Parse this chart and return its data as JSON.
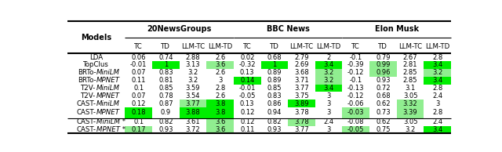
{
  "col_groups": [
    {
      "label": "20NewsGroups",
      "start": 1,
      "end": 5
    },
    {
      "label": "BBC News",
      "start": 5,
      "end": 9
    },
    {
      "label": "Elon Musk",
      "start": 9,
      "end": 13
    }
  ],
  "sub_cols": [
    "TC",
    "TD",
    "LLM-TC",
    "LLM-TD",
    "TC",
    "TD",
    "LLM-TC",
    "LLM-TD",
    "TC",
    "TD",
    "LLM-TC",
    "LLM-TD"
  ],
  "models": [
    "LDA",
    "TopClus",
    "BRTo-MiniLM",
    "BRTo-MPNET",
    "T2V-MiniLM",
    "T2V-MPNET",
    "CAST-MiniLM",
    "CAST-MPNET",
    "CAST-MiniLM *",
    "CAST-MPNET *"
  ],
  "italic_parts": {
    "BRTo-MiniLM": [
      "BRTo-",
      "MiniLM",
      ""
    ],
    "BRTo-MPNET": [
      "BRTo-",
      "MPNET",
      ""
    ],
    "T2V-MiniLM": [
      "T2V-",
      "MiniLM",
      ""
    ],
    "T2V-MPNET": [
      "T2V-",
      "MPNET",
      ""
    ],
    "CAST-MiniLM": [
      "CAST-",
      "MiniLM",
      ""
    ],
    "CAST-MPNET": [
      "CAST-",
      "MPNET",
      ""
    ],
    "CAST-MiniLM *": [
      "CAST-",
      "MiniLM",
      " *"
    ],
    "CAST-MPNET *": [
      "CAST-",
      "MPNET",
      " *"
    ]
  },
  "data": [
    [
      0.06,
      0.74,
      2.88,
      2.6,
      0.02,
      0.68,
      2.79,
      2,
      -0.1,
      0.79,
      2.67,
      2.8
    ],
    [
      -0.01,
      1,
      3.13,
      3.6,
      -0.32,
      1,
      2.69,
      3.4,
      -0.39,
      0.99,
      2.81,
      3.4
    ],
    [
      0.07,
      0.83,
      3.2,
      2.6,
      0.13,
      0.89,
      3.68,
      3.2,
      -0.12,
      0.96,
      2.85,
      3.2
    ],
    [
      0.11,
      0.81,
      3.2,
      3,
      0.14,
      0.89,
      3.71,
      3.2,
      -0.1,
      0.93,
      2.85,
      3.4
    ],
    [
      0.1,
      0.85,
      3.59,
      2.8,
      -0.01,
      0.85,
      3.77,
      3.4,
      -0.13,
      0.72,
      3.1,
      2.8
    ],
    [
      0.07,
      0.78,
      3.54,
      2.6,
      -0.05,
      0.83,
      3.75,
      3,
      -0.12,
      0.68,
      3.05,
      2.4
    ],
    [
      0.12,
      0.87,
      3.77,
      3.8,
      0.13,
      0.86,
      3.89,
      3,
      -0.06,
      0.62,
      3.32,
      3
    ],
    [
      0.18,
      0.9,
      3.88,
      3.8,
      0.12,
      0.94,
      3.78,
      3,
      -0.03,
      0.73,
      3.39,
      2.8
    ],
    [
      0.1,
      0.82,
      3.61,
      3.6,
      0.12,
      0.82,
      3.78,
      2.4,
      -0.08,
      0.62,
      3.05,
      2.4
    ],
    [
      0.17,
      0.93,
      3.72,
      3.6,
      0.11,
      0.93,
      3.77,
      3,
      -0.05,
      0.75,
      3.2,
      3.4
    ]
  ],
  "cell_colors": [
    [
      "w",
      "w",
      "w",
      "w",
      "w",
      "w",
      "w",
      "w",
      "w",
      "w",
      "w",
      "w"
    ],
    [
      "w",
      "#00ee00",
      "w",
      "#90ee90",
      "w",
      "#00ee00",
      "w",
      "#00ee00",
      "w",
      "#90ee90",
      "w",
      "#00ee00"
    ],
    [
      "w",
      "w",
      "w",
      "w",
      "w",
      "w",
      "w",
      "#90ee90",
      "w",
      "#90ee90",
      "w",
      "#90ee90"
    ],
    [
      "w",
      "w",
      "w",
      "w",
      "#00ee00",
      "w",
      "w",
      "#90ee90",
      "w",
      "w",
      "w",
      "#00ee00"
    ],
    [
      "w",
      "w",
      "w",
      "w",
      "w",
      "w",
      "w",
      "#00ee00",
      "w",
      "w",
      "w",
      "w"
    ],
    [
      "w",
      "w",
      "w",
      "w",
      "w",
      "w",
      "w",
      "w",
      "w",
      "w",
      "w",
      "w"
    ],
    [
      "w",
      "w",
      "#90ee90",
      "#00ee00",
      "w",
      "w",
      "#00ee00",
      "w",
      "w",
      "w",
      "#90ee90",
      "w"
    ],
    [
      "#00ee00",
      "w",
      "#00ee00",
      "#00ee00",
      "w",
      "w",
      "w",
      "w",
      "#90ee90",
      "w",
      "#90ee90",
      "w"
    ],
    [
      "w",
      "w",
      "w",
      "#90ee90",
      "w",
      "w",
      "#90ee90",
      "w",
      "w",
      "w",
      "w",
      "w"
    ],
    [
      "#90ee90",
      "w",
      "w",
      "#90ee90",
      "w",
      "w",
      "w",
      "w",
      "#90ee90",
      "w",
      "w",
      "#00ee00"
    ]
  ],
  "separator_after_row": 8,
  "val_formats": [
    [
      "0.06",
      "0.74",
      "2.88",
      "2.6",
      "0.02",
      "0.68",
      "2.79",
      "2",
      "-0.1",
      "0.79",
      "2.67",
      "2.8"
    ],
    [
      "-0.01",
      "1",
      "3.13",
      "3.6",
      "-0.32",
      "1",
      "2.69",
      "3.4",
      "-0.39",
      "0.99",
      "2.81",
      "3.4"
    ],
    [
      "0.07",
      "0.83",
      "3.2",
      "2.6",
      "0.13",
      "0.89",
      "3.68",
      "3.2",
      "-0.12",
      "0.96",
      "2.85",
      "3.2"
    ],
    [
      "0.11",
      "0.81",
      "3.2",
      "3",
      "0.14",
      "0.89",
      "3.71",
      "3.2",
      "-0.1",
      "0.93",
      "2.85",
      "3.4"
    ],
    [
      "0.1",
      "0.85",
      "3.59",
      "2.8",
      "-0.01",
      "0.85",
      "3.77",
      "3.4",
      "-0.13",
      "0.72",
      "3.1",
      "2.8"
    ],
    [
      "0.07",
      "0.78",
      "3.54",
      "2.6",
      "-0.05",
      "0.83",
      "3.75",
      "3",
      "-0.12",
      "0.68",
      "3.05",
      "2.4"
    ],
    [
      "0.12",
      "0.87",
      "3.77",
      "3.8",
      "0.13",
      "0.86",
      "3.89",
      "3",
      "-0.06",
      "0.62",
      "3.32",
      "3"
    ],
    [
      "0.18",
      "0.9",
      "3.88",
      "3.8",
      "0.12",
      "0.94",
      "3.78",
      "3",
      "-0.03",
      "0.73",
      "3.39",
      "2.8"
    ],
    [
      "0.1",
      "0.82",
      "3.61",
      "3.6",
      "0.12",
      "0.82",
      "3.78",
      "2.4",
      "-0.08",
      "0.62",
      "3.05",
      "2.4"
    ],
    [
      "0.17",
      "0.93",
      "3.72",
      "3.6",
      "0.11",
      "0.93",
      "3.77",
      "3",
      "-0.05",
      "0.75",
      "3.2",
      "3.4"
    ]
  ]
}
